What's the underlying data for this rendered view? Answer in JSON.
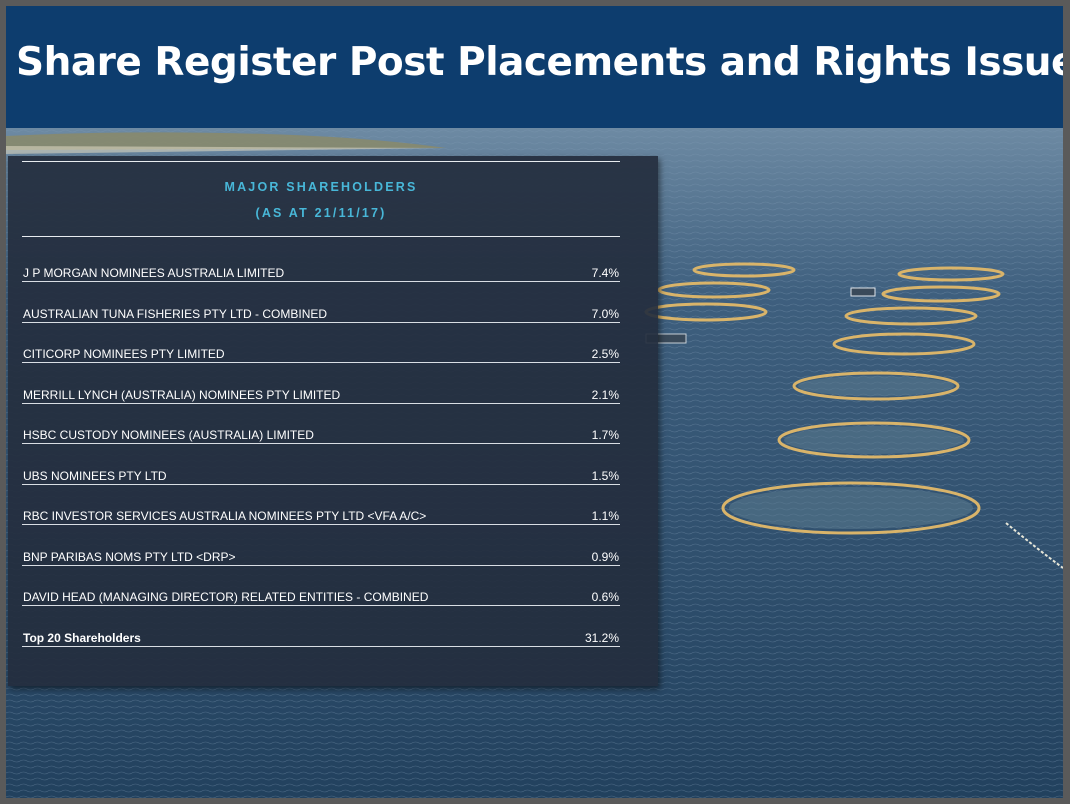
{
  "title": "Share Register Post Placements and Rights Issue",
  "panel": {
    "heading_line1": "MAJOR SHAREHOLDERS",
    "heading_line2": "(AS AT 21/11/17)"
  },
  "shareholders": [
    {
      "name": "J P MORGAN NOMINEES AUSTRALIA LIMITED",
      "pct": "7.4%"
    },
    {
      "name": "AUSTRALIAN TUNA FISHERIES PTY LTD - COMBINED",
      "pct": "7.0%"
    },
    {
      "name": "CITICORP NOMINEES PTY LIMITED",
      "pct": "2.5%"
    },
    {
      "name": "MERRILL LYNCH (AUSTRALIA) NOMINEES PTY LIMITED",
      "pct": "2.1%"
    },
    {
      "name": "HSBC CUSTODY NOMINEES (AUSTRALIA) LIMITED",
      "pct": "1.7%"
    },
    {
      "name": "UBS NOMINEES PTY LTD",
      "pct": "1.5%"
    },
    {
      "name": "RBC INVESTOR SERVICES AUSTRALIA NOMINEES PTY LTD <VFA A/C>",
      "pct": "1.1%"
    },
    {
      "name": "BNP PARIBAS NOMS PTY LTD <DRP>",
      "pct": "0.9%"
    },
    {
      "name": "DAVID HEAD (MANAGING DIRECTOR) RELATED ENTITIES - COMBINED",
      "pct": "0.6%"
    },
    {
      "name": "Top 20 Shareholders",
      "pct": "31.2%"
    }
  ],
  "colors": {
    "header": "#0d3d6e",
    "heading_accent": "#48b7d8",
    "sea": "#2c4a66"
  }
}
